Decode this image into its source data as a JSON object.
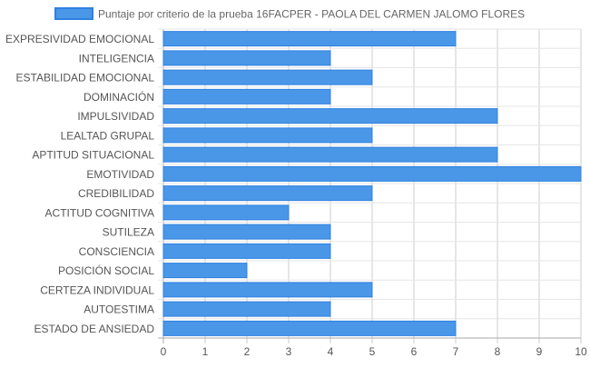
{
  "chart_data": {
    "type": "bar",
    "orientation": "horizontal",
    "categories": [
      "EXPRESIVIDAD EMOCIONAL",
      "INTELIGENCIA",
      "ESTABILIDAD EMOCIONAL",
      "DOMINACIÓN",
      "IMPULSIVIDAD",
      "LEALTAD GRUPAL",
      "APTITUD SITUACIONAL",
      "EMOTIVIDAD",
      "CREDIBILIDAD",
      "ACTITUD COGNITIVA",
      "SUTILEZA",
      "CONSCIENCIA",
      "POSICIÓN SOCIAL",
      "CERTEZA INDIVIDUAL",
      "AUTOESTIMA",
      "ESTADO DE ANSIEDAD"
    ],
    "series": [
      {
        "name": "Puntaje por criterio de la prueba 16FACPER - PAOLA DEL CARMEN JALOMO FLORES",
        "values": [
          7,
          4,
          5,
          4,
          8,
          5,
          8,
          10,
          5,
          3,
          4,
          4,
          2,
          5,
          4,
          7
        ],
        "color": "#4a97e8",
        "border_color": "#2f80e0"
      }
    ],
    "xlim": [
      0,
      10
    ],
    "x_ticks": [
      0,
      1,
      2,
      3,
      4,
      5,
      6,
      7,
      8,
      9,
      10
    ],
    "grid": true,
    "legend_position": "top"
  }
}
